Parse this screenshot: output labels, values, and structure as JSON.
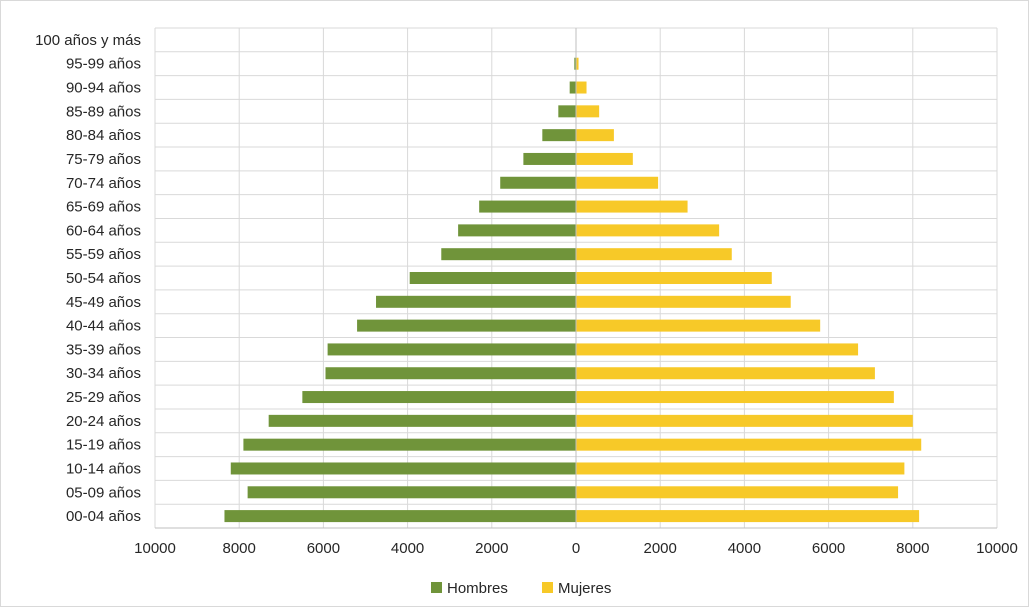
{
  "chart_data": {
    "type": "bar",
    "orientation": "horizontal",
    "subtype": "population-pyramid",
    "categories": [
      "00-04 años",
      "05-09 años",
      "10-14 años",
      "15-19 años",
      "20-24 años",
      "25-29 años",
      "30-34 años",
      "35-39 años",
      "40-44 años",
      "45-49 años",
      "50-54 años",
      "55-59 años",
      "60-64 años",
      "65-69 años",
      "70-74 años",
      "75-79 años",
      "80-84 años",
      "85-89 años",
      "90-94 años",
      "95-99 años",
      "100 años y más"
    ],
    "series": [
      {
        "name": "Hombres",
        "color": "#70943a",
        "values": [
          8350,
          7800,
          8200,
          7900,
          7300,
          6500,
          5950,
          5900,
          5200,
          4750,
          3950,
          3200,
          2800,
          2300,
          1800,
          1250,
          800,
          420,
          150,
          40,
          5
        ]
      },
      {
        "name": "Mujeres",
        "color": "#f7c928",
        "values": [
          8150,
          7650,
          7800,
          8200,
          8000,
          7550,
          7100,
          6700,
          5800,
          5100,
          4650,
          3700,
          3400,
          2650,
          1950,
          1350,
          900,
          550,
          250,
          60,
          10
        ]
      }
    ],
    "x_ticks": [
      "10000",
      "8000",
      "6000",
      "4000",
      "2000",
      "0",
      "2000",
      "4000",
      "6000",
      "8000",
      "10000"
    ],
    "xlim": [
      -10000,
      10000
    ],
    "grid": true,
    "legend": "bottom",
    "title": "",
    "xlabel": "",
    "ylabel": ""
  }
}
